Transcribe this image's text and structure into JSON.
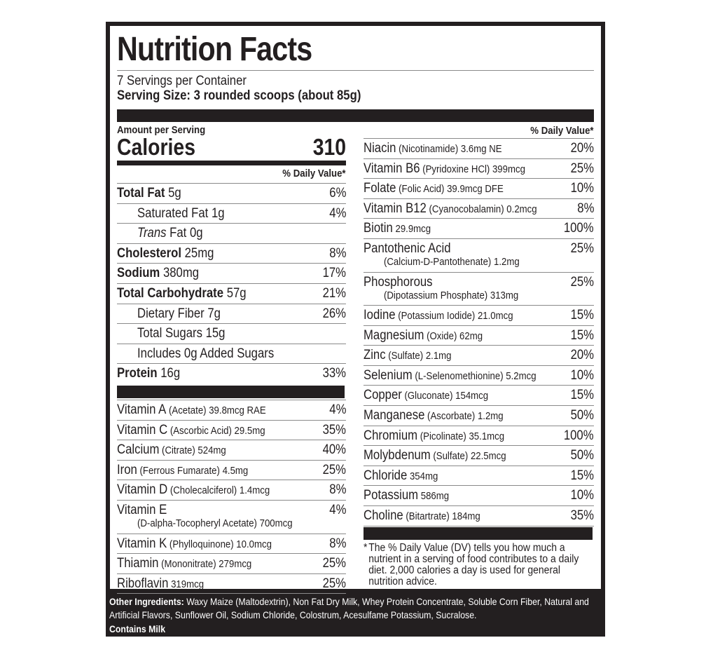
{
  "label": {
    "title": "Nutrition Facts",
    "servings_per_container": "7 Servings per Container",
    "serving_size": "Serving Size: 3 rounded scoops (about 85g)",
    "amount_per_serving": "Amount per Serving",
    "calories_label": "Calories",
    "calories_value": "310",
    "dv_header": "% Daily Value*"
  },
  "macros": [
    {
      "name": "Total Fat",
      "amount": " 5g",
      "dv": "6%",
      "bold": true,
      "indent": false
    },
    {
      "name": "Saturated Fat 1g",
      "amount": "",
      "dv": "4%",
      "bold": false,
      "indent": true
    },
    {
      "name": "Trans",
      "amount": " Fat 0g",
      "dv": "",
      "bold": false,
      "indent": true,
      "italic_name": true
    },
    {
      "name": "Cholesterol",
      "amount": " 25mg",
      "dv": "8%",
      "bold": true,
      "indent": false
    },
    {
      "name": "Sodium",
      "amount": " 380mg",
      "dv": "17%",
      "bold": true,
      "indent": false
    },
    {
      "name": "Total Carbohydrate",
      "amount": " 57g",
      "dv": "21%",
      "bold": true,
      "indent": false
    },
    {
      "name": "Dietary Fiber 7g",
      "amount": "",
      "dv": "26%",
      "bold": false,
      "indent": true
    },
    {
      "name": "Total Sugars 15g",
      "amount": "",
      "dv": "",
      "bold": false,
      "indent": true
    },
    {
      "name": "Includes 0g Added Sugars",
      "amount": "",
      "dv": "",
      "bold": false,
      "indent": true
    },
    {
      "name": "Protein",
      "amount": " 16g",
      "dv": "33%",
      "bold": true,
      "indent": false
    }
  ],
  "vitamins_left": [
    {
      "name": "Vitamin A",
      "detail": " (Acetate) 39.8mcg RAE",
      "dv": "4%"
    },
    {
      "name": "Vitamin C",
      "detail": " (Ascorbic Acid) 29.5mg",
      "dv": "35%"
    },
    {
      "name": "Calcium",
      "detail": " (Citrate) 524mg",
      "dv": "40%"
    },
    {
      "name": "Iron",
      "detail": " (Ferrous Fumarate) 4.5mg",
      "dv": "25%"
    },
    {
      "name": "Vitamin D",
      "detail": " (Cholecalciferol) 1.4mcg",
      "dv": "8%"
    },
    {
      "name": "Vitamin E",
      "detail": "(D-alpha-Tocopheryl Acetate) 700mcg",
      "dv": "4%",
      "two_line": true
    },
    {
      "name": "Vitamin K",
      "detail": " (Phylloquinone) 10.0mcg",
      "dv": "8%"
    },
    {
      "name": "Thiamin",
      "detail": " (Mononitrate) 279mcg",
      "dv": "25%"
    },
    {
      "name": "Riboflavin",
      "detail": " 319mcg",
      "dv": "25%"
    }
  ],
  "vitamins_right": [
    {
      "name": "Niacin",
      "detail": " (Nicotinamide) 3.6mg NE",
      "dv": "20%"
    },
    {
      "name": "Vitamin B6",
      "detail": " (Pyridoxine HCl) 399mcg",
      "dv": "25%"
    },
    {
      "name": "Folate",
      "detail": " (Folic Acid) 39.9mcg DFE",
      "dv": "10%"
    },
    {
      "name": "Vitamin B12",
      "detail": " (Cyanocobalamin) 0.2mcg",
      "dv": "8%"
    },
    {
      "name": "Biotin",
      "detail": " 29.9mcg",
      "dv": "100%"
    },
    {
      "name": "Pantothenic Acid",
      "detail": "(Calcium-D-Pantothenate) 1.2mg",
      "dv": "25%",
      "two_line": true
    },
    {
      "name": "Phosphorous",
      "detail": "(Dipotassium Phosphate) 313mg",
      "dv": "25%",
      "two_line": true
    },
    {
      "name": "Iodine",
      "detail": " (Potassium Iodide) 21.0mcg",
      "dv": "15%"
    },
    {
      "name": "Magnesium",
      "detail": " (Oxide) 62mg",
      "dv": "15%"
    },
    {
      "name": "Zinc",
      "detail": " (Sulfate) 2.1mg",
      "dv": "20%"
    },
    {
      "name": "Selenium",
      "detail": " (L-Selenomethionine) 5.2mcg",
      "dv": "10%"
    },
    {
      "name": "Copper",
      "detail": " (Gluconate) 154mcg",
      "dv": "15%"
    },
    {
      "name": "Manganese",
      "detail": " (Ascorbate) 1.2mg",
      "dv": "50%"
    },
    {
      "name": "Chromium",
      "detail": " (Picolinate) 35.1mcg",
      "dv": "100%"
    },
    {
      "name": "Molybdenum",
      "detail": " (Sulfate) 22.5mcg",
      "dv": "50%"
    },
    {
      "name": "Chloride",
      "detail": " 354mg",
      "dv": "15%"
    },
    {
      "name": "Potassium",
      "detail": " 586mg",
      "dv": "10%"
    },
    {
      "name": "Choline",
      "detail": " (Bitartrate) 184mg",
      "dv": "35%"
    }
  ],
  "footnote": {
    "star": "*",
    "text": "The % Daily Value (DV) tells you how much a nutrient in a serving of food contributes to a daily diet. 2,000 calories a day is used for general nutrition advice."
  },
  "ingredients": {
    "label": "Other Ingredients:",
    "text": " Waxy Maize (Maltodextrin), Non Fat Dry Milk, Whey Protein Concentrate, Soluble Corn Fiber, Natural and Artificial Flavors, Sunflower Oil, Sodium Chloride, Colostrum,  Acesulfame Potassium, Sucralose.",
    "contains": "Contains Milk"
  },
  "colors": {
    "ink": "#231f20",
    "rule": "#8a8a8a",
    "background": "#ffffff"
  }
}
